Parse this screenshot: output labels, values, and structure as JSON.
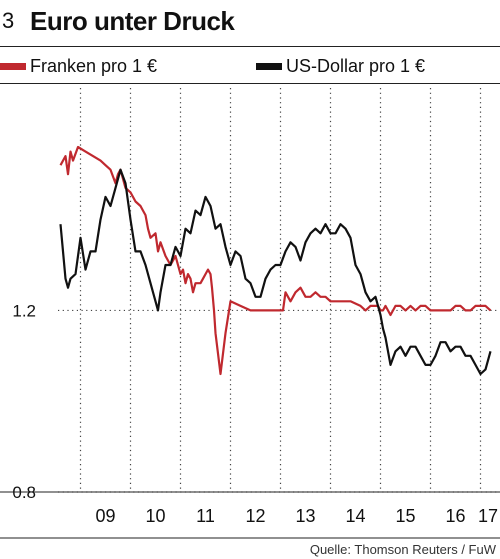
{
  "header": {
    "figure_number": "3",
    "title": "Euro unter Druck"
  },
  "source": "Quelle: Thomson Reuters / FuW",
  "chart_data": {
    "type": "line",
    "title": "Euro unter Druck",
    "xlabel": "",
    "ylabel": "",
    "x_range": [
      2008.55,
      2017.35
    ],
    "ylim": [
      0.8,
      1.69
    ],
    "x_ticks": [
      {
        "label": "09",
        "value": 2009.5
      },
      {
        "label": "10",
        "value": 2010.5
      },
      {
        "label": "11",
        "value": 2011.5
      },
      {
        "label": "12",
        "value": 2012.5
      },
      {
        "label": "13",
        "value": 2013.5
      },
      {
        "label": "14",
        "value": 2014.5
      },
      {
        "label": "15",
        "value": 2015.5
      },
      {
        "label": "16",
        "value": 2016.5
      },
      {
        "label": "17",
        "value": 2017.15
      }
    ],
    "x_gridlines": [
      2009,
      2010,
      2011,
      2012,
      2013,
      2014,
      2015,
      2016,
      2017
    ],
    "y_ticks": [
      {
        "label": "1.2",
        "value": 1.2
      },
      {
        "label": "0.8",
        "value": 0.8
      }
    ],
    "grid": true,
    "legend_position": "top",
    "series": [
      {
        "name": "Franken pro 1 €",
        "color": "#c0292f",
        "x": [
          2008.6,
          2008.7,
          2008.75,
          2008.8,
          2008.85,
          2008.95,
          2009.1,
          2009.25,
          2009.4,
          2009.5,
          2009.6,
          2009.7,
          2009.75,
          2009.8,
          2009.9,
          2010.0,
          2010.1,
          2010.2,
          2010.25,
          2010.3,
          2010.35,
          2010.4,
          2010.5,
          2010.55,
          2010.6,
          2010.7,
          2010.8,
          2010.9,
          2011.0,
          2011.05,
          2011.1,
          2011.15,
          2011.2,
          2011.25,
          2011.3,
          2011.4,
          2011.45,
          2011.5,
          2011.55,
          2011.6,
          2011.63,
          2011.67,
          2011.7,
          2011.8,
          2011.9,
          2012.0,
          2012.2,
          2012.4,
          2012.6,
          2012.8,
          2012.95,
          2013.05,
          2013.1,
          2013.2,
          2013.3,
          2013.4,
          2013.5,
          2013.6,
          2013.7,
          2013.8,
          2013.9,
          2014.0,
          2014.2,
          2014.4,
          2014.6,
          2014.7,
          2014.8,
          2014.95,
          2015.0,
          2015.02,
          2015.05,
          2015.1,
          2015.2,
          2015.3,
          2015.4,
          2015.5,
          2015.6,
          2015.7,
          2015.8,
          2015.9,
          2016.0,
          2016.1,
          2016.2,
          2016.3,
          2016.4,
          2016.5,
          2016.6,
          2016.7,
          2016.8,
          2016.9,
          2017.0,
          2017.1,
          2017.2
        ],
        "values": [
          1.52,
          1.54,
          1.5,
          1.55,
          1.53,
          1.56,
          1.55,
          1.54,
          1.53,
          1.52,
          1.51,
          1.48,
          1.5,
          1.51,
          1.47,
          1.46,
          1.44,
          1.43,
          1.42,
          1.41,
          1.38,
          1.36,
          1.37,
          1.33,
          1.35,
          1.32,
          1.3,
          1.32,
          1.28,
          1.29,
          1.26,
          1.28,
          1.27,
          1.24,
          1.26,
          1.26,
          1.27,
          1.28,
          1.29,
          1.28,
          1.25,
          1.2,
          1.15,
          1.06,
          1.15,
          1.22,
          1.21,
          1.2,
          1.2,
          1.2,
          1.2,
          1.2,
          1.24,
          1.22,
          1.24,
          1.25,
          1.23,
          1.23,
          1.24,
          1.23,
          1.23,
          1.22,
          1.22,
          1.22,
          1.21,
          1.2,
          1.21,
          1.21,
          1.2,
          1.2,
          1.2,
          1.21,
          1.19,
          1.21,
          1.21,
          1.2,
          1.21,
          1.2,
          1.21,
          1.21,
          1.2,
          1.2,
          1.2,
          1.2,
          1.2,
          1.21,
          1.21,
          1.2,
          1.2,
          1.21,
          1.21,
          1.21,
          1.2
        ],
        "note_values_adjusted_below": true
      },
      {
        "name": "US-Dollar pro 1 €",
        "color": "#111111",
        "x": [
          2008.6,
          2008.65,
          2008.7,
          2008.75,
          2008.8,
          2008.9,
          2009.0,
          2009.1,
          2009.2,
          2009.3,
          2009.4,
          2009.5,
          2009.6,
          2009.7,
          2009.8,
          2009.9,
          2010.0,
          2010.1,
          2010.2,
          2010.3,
          2010.4,
          2010.5,
          2010.55,
          2010.6,
          2010.7,
          2010.8,
          2010.9,
          2011.0,
          2011.1,
          2011.2,
          2011.3,
          2011.4,
          2011.5,
          2011.6,
          2011.7,
          2011.8,
          2011.9,
          2012.0,
          2012.1,
          2012.2,
          2012.3,
          2012.4,
          2012.5,
          2012.6,
          2012.7,
          2012.8,
          2012.9,
          2013.0,
          2013.1,
          2013.2,
          2013.3,
          2013.4,
          2013.5,
          2013.6,
          2013.7,
          2013.8,
          2013.9,
          2014.0,
          2014.1,
          2014.2,
          2014.3,
          2014.4,
          2014.5,
          2014.6,
          2014.7,
          2014.8,
          2014.9,
          2015.0,
          2015.05,
          2015.1,
          2015.2,
          2015.3,
          2015.4,
          2015.5,
          2015.6,
          2015.7,
          2015.8,
          2015.9,
          2016.0,
          2016.1,
          2016.2,
          2016.3,
          2016.4,
          2016.5,
          2016.6,
          2016.7,
          2016.8,
          2016.9,
          2017.0,
          2017.1,
          2017.2
        ],
        "values": [
          1.39,
          1.33,
          1.27,
          1.25,
          1.27,
          1.28,
          1.36,
          1.29,
          1.33,
          1.33,
          1.4,
          1.45,
          1.43,
          1.47,
          1.51,
          1.48,
          1.4,
          1.33,
          1.33,
          1.3,
          1.26,
          1.22,
          1.2,
          1.24,
          1.3,
          1.3,
          1.34,
          1.32,
          1.38,
          1.37,
          1.42,
          1.41,
          1.45,
          1.43,
          1.38,
          1.39,
          1.34,
          1.3,
          1.33,
          1.32,
          1.27,
          1.26,
          1.23,
          1.23,
          1.27,
          1.29,
          1.3,
          1.3,
          1.33,
          1.35,
          1.34,
          1.31,
          1.35,
          1.37,
          1.38,
          1.37,
          1.39,
          1.37,
          1.37,
          1.39,
          1.38,
          1.36,
          1.3,
          1.28,
          1.24,
          1.22,
          1.23,
          1.19,
          1.16,
          1.14,
          1.08,
          1.11,
          1.12,
          1.1,
          1.12,
          1.12,
          1.1,
          1.08,
          1.08,
          1.1,
          1.13,
          1.13,
          1.11,
          1.12,
          1.12,
          1.1,
          1.1,
          1.08,
          1.06,
          1.07,
          1.11
        ]
      }
    ]
  }
}
